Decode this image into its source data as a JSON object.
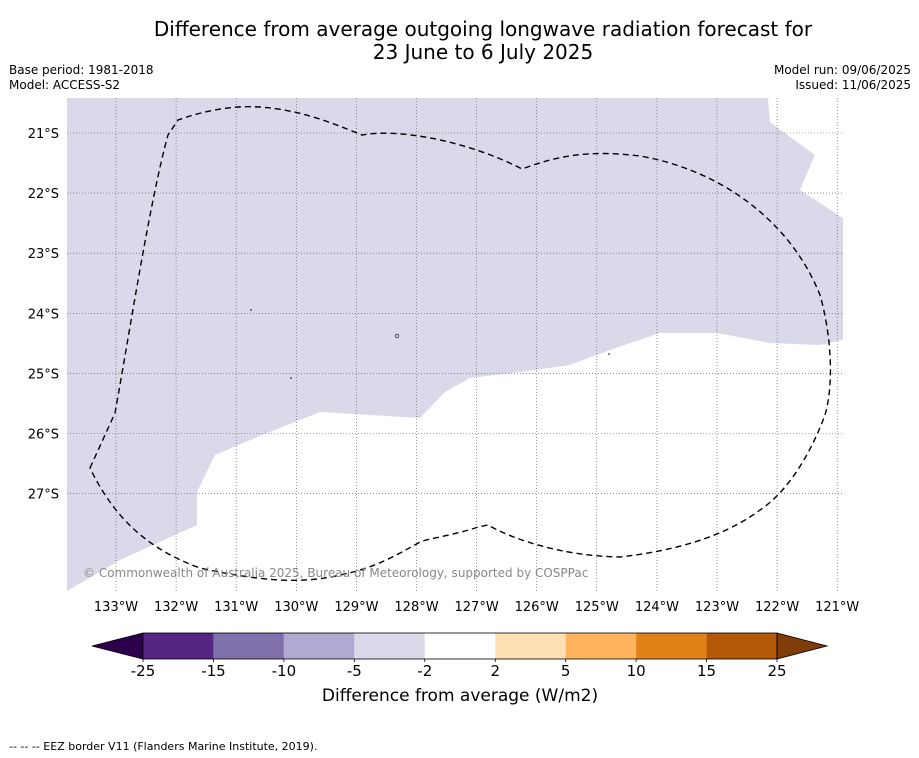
{
  "title_line1": "Difference from average outgoing longwave radiation forecast for",
  "title_line2": "23 June to 6 July 2025",
  "base_period": "Base period: 1981-2018",
  "model": "Model: ACCESS-S2",
  "model_run": "Model run: 09/06/2025",
  "issued": "Issued: 11/06/2025",
  "copyright": "© Commonwealth of Australia 2025, Bureau of Meteorology, supported by COSPPac",
  "lat_labels": [
    "21°S",
    "22°S",
    "23°S",
    "24°S",
    "25°S",
    "26°S",
    "27°S"
  ],
  "lon_labels": [
    "133°W",
    "132°W",
    "131°W",
    "130°W",
    "129°W",
    "128°W",
    "127°W",
    "126°W",
    "125°W",
    "124°W",
    "123°W",
    "122°W",
    "121°W"
  ],
  "colorbar": {
    "ticks": [
      "-25",
      "-15",
      "-10",
      "-5",
      "-2",
      "2",
      "5",
      "10",
      "15",
      "25"
    ],
    "colors": [
      "#562685",
      "#7f6fab",
      "#b1a9d2",
      "#d9d9ea",
      "#ffffff",
      "#ffe0b4",
      "#fdb45c",
      "#e08215",
      "#b35806"
    ],
    "extend_low_color": "#2d004b",
    "extend_high_color": "#7f3b08",
    "label": "Difference from average (W/m2)"
  },
  "footnote": "--  --  -- EEZ border V11 (Flanders Marine Institute, 2019)."
}
